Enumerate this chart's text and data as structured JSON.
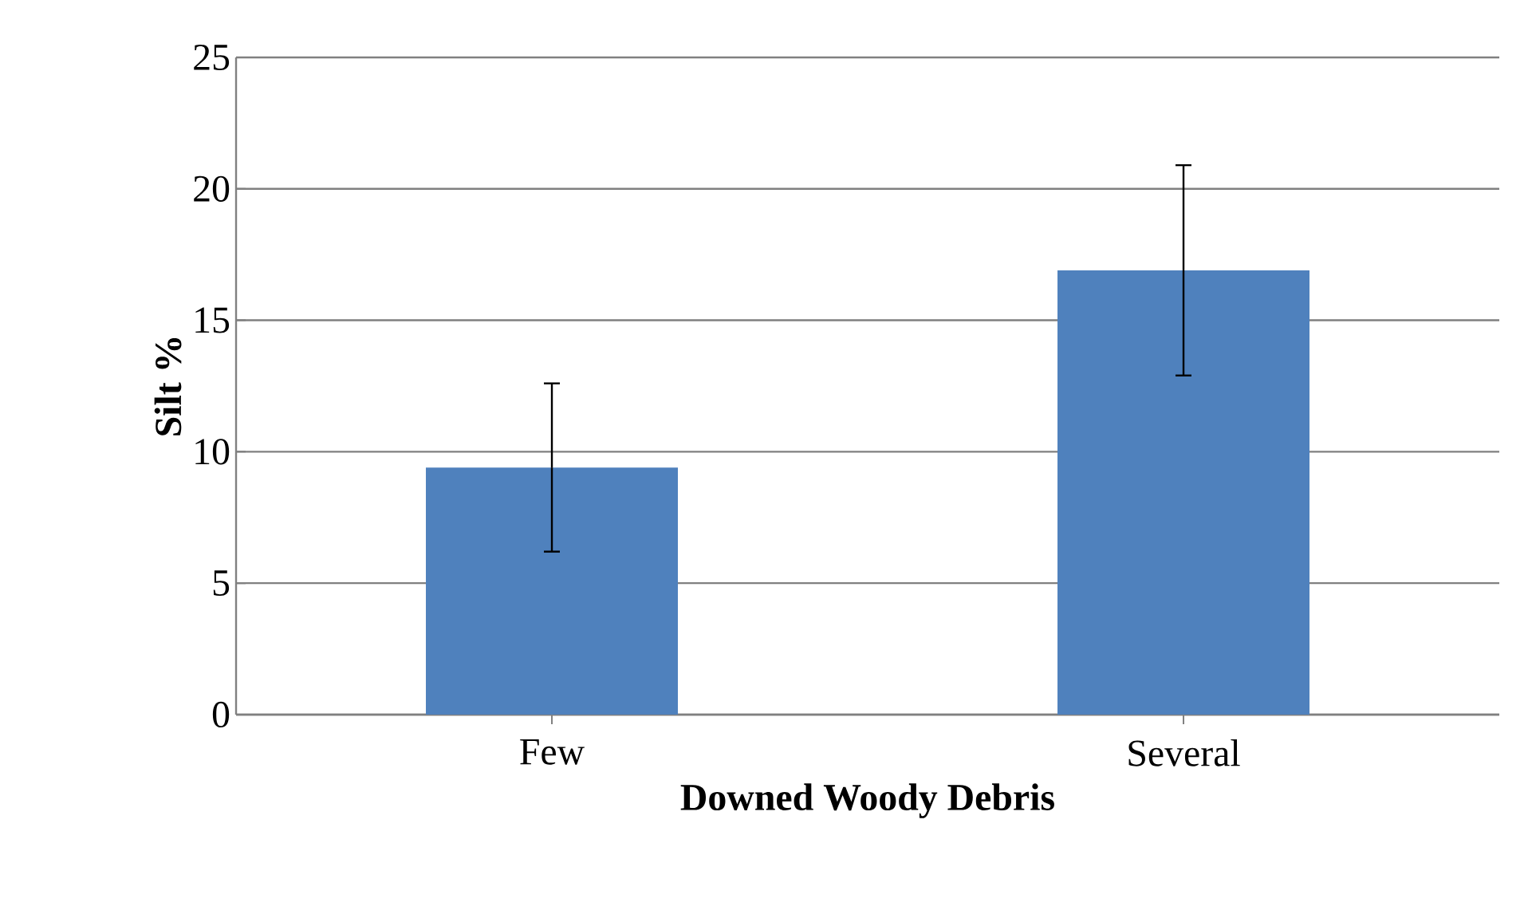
{
  "chart_data": {
    "type": "bar",
    "xlabel": "Downed Woody Debris",
    "ylabel": "Silt %",
    "categories": [
      "Few",
      "Several"
    ],
    "values": [
      9.4,
      16.9
    ],
    "errors": [
      3.2,
      4.0
    ],
    "color": "#4f81bd",
    "ylim": [
      0,
      25
    ],
    "yticks": [
      0,
      5,
      10,
      15,
      20,
      25
    ],
    "grid": "y"
  }
}
